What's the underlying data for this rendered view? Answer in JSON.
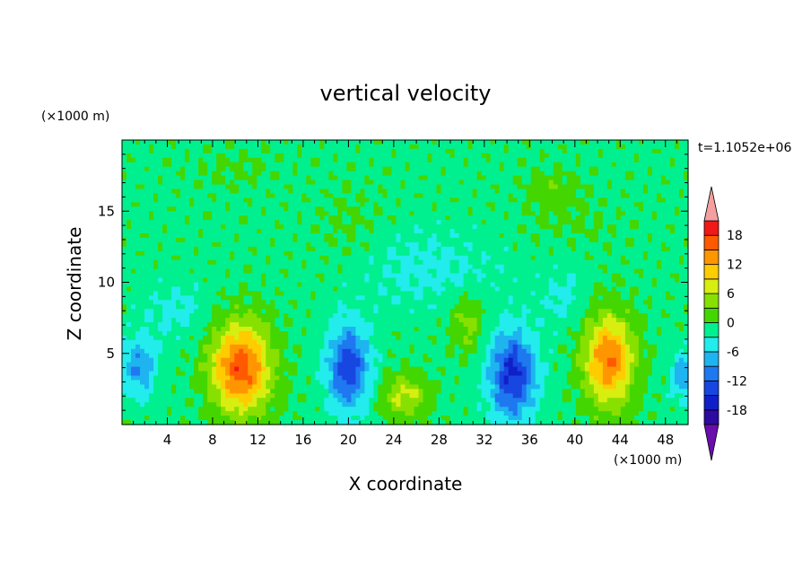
{
  "chart_data": {
    "type": "heatmap",
    "title": "vertical velocity",
    "xlabel": "X coordinate",
    "ylabel": "Z coordinate",
    "x_unit": "(×1000 m)",
    "y_unit": "(×1000 m)",
    "time_label": "t=1.1052e+06",
    "xlim": [
      0,
      50
    ],
    "ylim": [
      0,
      20
    ],
    "x_ticks": [
      4,
      8,
      12,
      16,
      20,
      24,
      28,
      32,
      36,
      40,
      44,
      48
    ],
    "y_ticks": [
      5,
      10,
      15
    ],
    "colorbar": {
      "levels": [
        -21,
        -18,
        -15,
        -12,
        -9,
        -6,
        -3,
        0,
        3,
        6,
        9,
        12,
        15,
        18,
        21
      ],
      "labels": [
        18,
        12,
        6,
        0,
        -6,
        -12,
        -18
      ],
      "colors": [
        "#6a0dad",
        "#2d0aa0",
        "#1020c8",
        "#1846e0",
        "#1e78f0",
        "#1eb4f0",
        "#22ecec",
        "#00f090",
        "#44d600",
        "#88e000",
        "#d8ee10",
        "#ffcc00",
        "#ff9600",
        "#ff5a00",
        "#f01818",
        "#f5a0a0"
      ],
      "extend": "both"
    },
    "field": {
      "background": -1,
      "features": [
        {
          "x": 10.5,
          "z": 4,
          "sx": 2.6,
          "sz": 3.2,
          "amp": 18
        },
        {
          "x": 43,
          "z": 4.5,
          "sx": 2.2,
          "sz": 3.2,
          "amp": 16
        },
        {
          "x": 25,
          "z": 2,
          "sx": 2,
          "sz": 1.5,
          "amp": 8
        },
        {
          "x": 30.5,
          "z": 7,
          "sx": 1.5,
          "sz": 2,
          "amp": 5
        },
        {
          "x": 34.5,
          "z": 3.5,
          "sx": 2,
          "sz": 3,
          "amp": -15
        },
        {
          "x": 20,
          "z": 4,
          "sx": 1.8,
          "sz": 3,
          "amp": -13
        },
        {
          "x": 1.5,
          "z": 4,
          "sx": 1.5,
          "sz": 2,
          "amp": -8
        },
        {
          "x": 49.5,
          "z": 3.5,
          "sx": 1,
          "sz": 1.5,
          "amp": -8
        },
        {
          "x": 38,
          "z": 16.5,
          "sx": 2.5,
          "sz": 1.5,
          "amp": 3
        },
        {
          "x": 20,
          "z": 14,
          "sx": 3,
          "sz": 3,
          "amp": 1.5
        },
        {
          "x": 10,
          "z": 18,
          "sx": 4,
          "sz": 1.5,
          "amp": 1.5
        },
        {
          "x": 40,
          "z": 14,
          "sx": 4,
          "sz": 2,
          "amp": 1.2
        },
        {
          "x": 27,
          "z": 11,
          "sx": 6,
          "sz": 2.5,
          "amp": -3
        },
        {
          "x": 5,
          "z": 8,
          "sx": 3,
          "sz": 2,
          "amp": -3
        },
        {
          "x": 39,
          "z": 9,
          "sx": 2,
          "sz": 2,
          "amp": -3
        }
      ]
    }
  }
}
